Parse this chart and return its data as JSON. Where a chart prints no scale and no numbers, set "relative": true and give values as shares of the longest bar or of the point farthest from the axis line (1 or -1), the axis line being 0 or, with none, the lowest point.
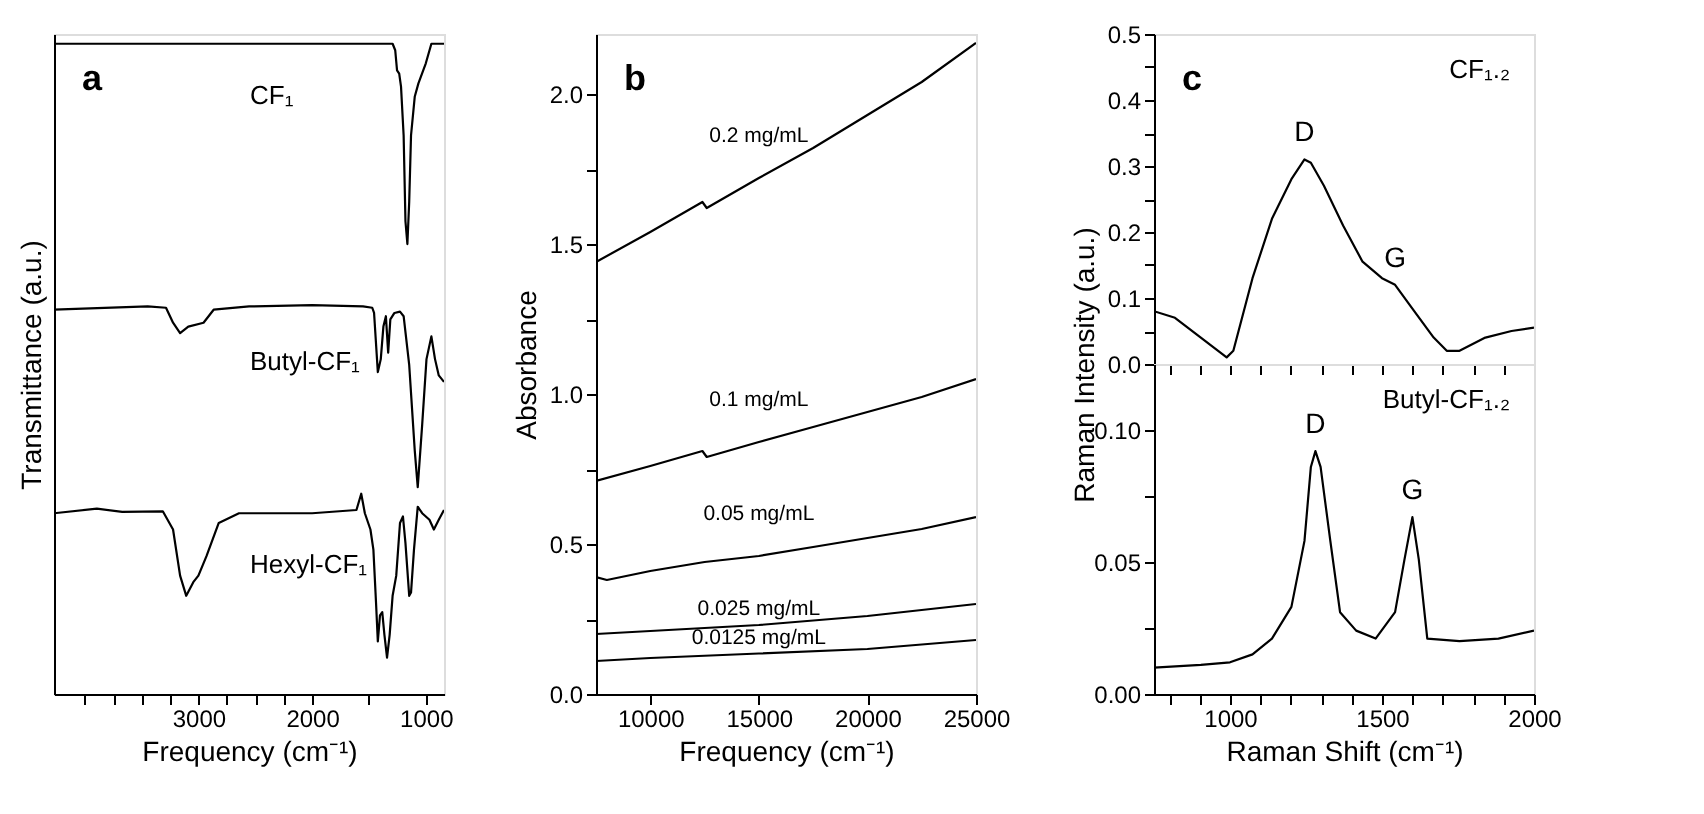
{
  "chart_data": [
    {
      "type": "line",
      "relative": true,
      "xlabel": "Frequency (cm⁻¹)",
      "ylabel": "Transmittance (a.u.)",
      "annotations": [
        "a"
      ],
      "xlim": [
        4270,
        840
      ],
      "xticks": [
        {
          "value": 4000,
          "label": null
        },
        {
          "value": 3750,
          "label": null
        },
        {
          "value": 3500,
          "label": null
        },
        {
          "value": 3250,
          "label": null
        },
        3000,
        {
          "value": 2750,
          "label": null
        },
        {
          "value": 2500,
          "label": null
        },
        {
          "value": 2250,
          "label": null
        },
        2000,
        {
          "value": 1500,
          "label": null
        },
        1000
      ],
      "series": [
        {
          "name": "CF₁",
          "color": "#000000",
          "x": [
            4270,
            1292,
            1269,
            1253,
            1234,
            1218,
            1195,
            1179,
            1162,
            1146,
            1130,
            1097,
            1065,
            1000,
            951,
            840
          ],
          "values": [
            1,
            1,
            0.99,
            0.959,
            0.954,
            0.934,
            0.859,
            0.727,
            0.692,
            0.757,
            0.859,
            0.919,
            0.939,
            0.97,
            1,
            1
          ]
        },
        {
          "name": "Butyl-CF₁",
          "color": "#000000",
          "x": [
            4270,
            3446,
            3285,
            3223,
            3161,
            3089,
            2955,
            2866,
            2554,
            2000,
            1552,
            1471,
            1455,
            1422,
            1396,
            1373,
            1351,
            1331,
            1312,
            1276,
            1227,
            1195,
            1146,
            1097,
            1071,
            1032,
            994,
            951,
            919,
            886,
            840
          ],
          "values": [
            0.591,
            0.596,
            0.594,
            0.571,
            0.555,
            0.565,
            0.571,
            0.591,
            0.596,
            0.598,
            0.596,
            0.594,
            0.586,
            0.495,
            0.515,
            0.565,
            0.581,
            0.525,
            0.576,
            0.586,
            0.588,
            0.581,
            0.506,
            0.374,
            0.318,
            0.414,
            0.515,
            0.55,
            0.515,
            0.49,
            0.48
          ]
        },
        {
          "name": "Hexyl-CF₁",
          "color": "#000000",
          "x": [
            4270,
            3893,
            3670,
            3313,
            3223,
            3161,
            3107,
            3045,
            3000,
            2929,
            2821,
            2643,
            2000,
            1610,
            1568,
            1536,
            1487,
            1461,
            1438,
            1422,
            1403,
            1383,
            1364,
            1341,
            1318,
            1292,
            1260,
            1227,
            1201,
            1179,
            1146,
            1130,
            1104,
            1071,
            1032,
            968,
            929,
            886,
            840
          ],
          "values": [
            0.278,
            0.285,
            0.28,
            0.281,
            0.253,
            0.182,
            0.151,
            0.172,
            0.182,
            0.212,
            0.263,
            0.278,
            0.278,
            0.283,
            0.308,
            0.278,
            0.253,
            0.222,
            0.141,
            0.081,
            0.121,
            0.126,
            0.091,
            0.056,
            0.091,
            0.151,
            0.182,
            0.263,
            0.273,
            0.232,
            0.151,
            0.156,
            0.222,
            0.288,
            0.278,
            0.268,
            0.253,
            0.268,
            0.283
          ]
        }
      ]
    },
    {
      "type": "line",
      "xlabel": "Frequency (cm⁻¹)",
      "ylabel": "Absorbance",
      "annotations": [
        "b"
      ],
      "xlim": [
        7500,
        25000
      ],
      "xticks": [
        10000,
        15000,
        20000,
        25000
      ],
      "ylim": [
        0,
        2.2
      ],
      "yticks": [
        {
          "value": 0,
          "label": "0.0"
        },
        {
          "value": 0.25,
          "label": null
        },
        {
          "value": 0.5,
          "label": "0.5"
        },
        {
          "value": 0.75,
          "label": null
        },
        {
          "value": 1,
          "label": "1.0"
        },
        {
          "value": 1.25,
          "label": null
        },
        {
          "value": 1.5,
          "label": "1.5"
        },
        {
          "value": 1.75,
          "label": null
        },
        {
          "value": 2,
          "label": "2.0"
        }
      ],
      "series": [
        {
          "name": "0.2 mg/mL",
          "color": "#000000",
          "x": [
            7500,
            10000,
            12400,
            12600,
            15000,
            17500,
            20000,
            22500,
            25000
          ],
          "values": [
            1.44,
            1.54,
            1.64,
            1.62,
            1.72,
            1.82,
            1.93,
            2.04,
            2.17
          ]
        },
        {
          "name": "0.1 mg/mL",
          "color": "#000000",
          "x": [
            7500,
            10000,
            12400,
            12600,
            15000,
            17500,
            20000,
            22500,
            25000
          ],
          "values": [
            0.71,
            0.76,
            0.81,
            0.79,
            0.84,
            0.89,
            0.94,
            0.99,
            1.05
          ]
        },
        {
          "name": "0.05 mg/mL",
          "color": "#000000",
          "x": [
            7500,
            8000,
            10000,
            12500,
            15000,
            17500,
            20000,
            22500,
            25000
          ],
          "values": [
            0.39,
            0.38,
            0.41,
            0.44,
            0.46,
            0.49,
            0.52,
            0.55,
            0.59
          ]
        },
        {
          "name": "0.025 mg/mL",
          "color": "#000000",
          "x": [
            7500,
            10000,
            15000,
            20000,
            25000
          ],
          "values": [
            0.2,
            0.21,
            0.23,
            0.26,
            0.3
          ]
        },
        {
          "name": "0.0125 mg/mL",
          "color": "#000000",
          "x": [
            7500,
            10000,
            15000,
            20000,
            25000
          ],
          "values": [
            0.11,
            0.12,
            0.135,
            0.15,
            0.18
          ]
        }
      ]
    },
    {
      "type": "line",
      "ylabel": "Raman Intensity (a.u.)",
      "tick_labels": "y",
      "annotations": [
        "c",
        {
          "text": "D",
          "x": 1245,
          "y": 0.31
        },
        {
          "text": "G",
          "x": 1543,
          "y": 0.12
        }
      ],
      "xlim": [
        750,
        2000
      ],
      "xticks": [
        {
          "value": 800,
          "label": null
        },
        {
          "value": 900,
          "label": null
        },
        {
          "value": 1000,
          "label": null
        },
        {
          "value": 1100,
          "label": null
        },
        {
          "value": 1200,
          "label": null
        },
        {
          "value": 1300,
          "label": null
        },
        {
          "value": 1400,
          "label": null
        },
        {
          "value": 1500,
          "label": null
        },
        {
          "value": 1600,
          "label": null
        },
        {
          "value": 1700,
          "label": null
        },
        {
          "value": 1800,
          "label": null
        },
        {
          "value": 1900,
          "label": null
        },
        {
          "value": 2000,
          "label": null
        }
      ],
      "ylim": [
        0,
        0.5
      ],
      "yticks": [
        {
          "value": 0,
          "label": "0.0"
        },
        {
          "value": 0.05,
          "label": null
        },
        0.1,
        {
          "value": 0.15,
          "label": null
        },
        0.2,
        {
          "value": 0.25,
          "label": null
        },
        0.3,
        {
          "value": 0.35,
          "label": null
        },
        0.4,
        {
          "value": 0.45,
          "label": null
        },
        0.5
      ],
      "series": [
        {
          "name": "CF₁.₂",
          "color": "#000000",
          "x": [
            750,
            819,
            904,
            989,
            1011,
            1074,
            1138,
            1202,
            1245,
            1266,
            1309,
            1372,
            1436,
            1500,
            1543,
            1606,
            1670,
            1713,
            1755,
            1840,
            1926,
            2000
          ],
          "values": [
            0.08,
            0.07,
            0.04,
            0.01,
            0.02,
            0.13,
            0.22,
            0.28,
            0.31,
            0.305,
            0.27,
            0.21,
            0.155,
            0.13,
            0.12,
            0.08,
            0.04,
            0.02,
            0.02,
            0.04,
            0.05,
            0.055
          ]
        }
      ]
    },
    {
      "type": "line",
      "xlabel": "Raman Shift (cm⁻¹)",
      "annotations": [
        {
          "text": "D",
          "x": 1281,
          "y": 0.092
        },
        {
          "text": "G",
          "x": 1600,
          "y": 0.067
        }
      ],
      "xlim": [
        750,
        2000
      ],
      "xticks": [
        {
          "value": 800,
          "label": null
        },
        {
          "value": 900,
          "label": null
        },
        1000,
        {
          "value": 1100,
          "label": null
        },
        {
          "value": 1200,
          "label": null
        },
        {
          "value": 1300,
          "label": null
        },
        {
          "value": 1400,
          "label": null
        },
        1500,
        {
          "value": 1600,
          "label": null
        },
        {
          "value": 1700,
          "label": null
        },
        {
          "value": 1800,
          "label": null
        },
        {
          "value": 1900,
          "label": null
        },
        2000
      ],
      "ylim": [
        0,
        0.125
      ],
      "yticks": [
        {
          "value": 0,
          "label": "0.00"
        },
        {
          "value": 0.025,
          "label": null
        },
        {
          "value": 0.05,
          "label": "0.05"
        },
        {
          "value": 0.075,
          "label": null
        },
        {
          "value": 0.1,
          "label": "0.10"
        }
      ],
      "series": [
        {
          "name": "Butyl-CF₁.₂",
          "color": "#000000",
          "x": [
            750,
            904,
            1000,
            1074,
            1138,
            1202,
            1245,
            1266,
            1281,
            1298,
            1330,
            1362,
            1415,
            1479,
            1543,
            1574,
            1600,
            1621,
            1649,
            1755,
            1883,
            2000
          ],
          "values": [
            0.01,
            0.011,
            0.012,
            0.015,
            0.021,
            0.033,
            0.058,
            0.086,
            0.092,
            0.086,
            0.058,
            0.031,
            0.024,
            0.021,
            0.031,
            0.051,
            0.067,
            0.051,
            0.021,
            0.02,
            0.021,
            0.024
          ]
        }
      ]
    }
  ]
}
